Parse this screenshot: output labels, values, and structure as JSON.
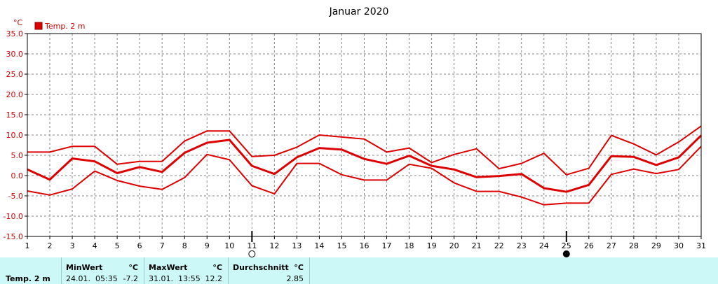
{
  "chart_data": {
    "type": "line",
    "title": "Januar 2020",
    "unit": "°C",
    "legend": {
      "label": "Temp. 2 m",
      "placement": "top-left",
      "color": "#dd0000"
    },
    "ylim": [
      -15,
      35
    ],
    "yticks": [
      "35.0",
      "30.0",
      "25.0",
      "20.0",
      "15.0",
      "10.0",
      "5.0",
      "0.0",
      "-5.0",
      "-10.0",
      "-15.0"
    ],
    "ytick_values": [
      35,
      30,
      25,
      20,
      15,
      10,
      5,
      0,
      -5,
      -10,
      -15
    ],
    "x": [
      1,
      2,
      3,
      4,
      5,
      6,
      7,
      8,
      9,
      10,
      11,
      12,
      13,
      14,
      15,
      16,
      17,
      18,
      19,
      20,
      21,
      22,
      23,
      24,
      25,
      26,
      27,
      28,
      29,
      30,
      31
    ],
    "xlim": [
      1,
      31
    ],
    "grid": true,
    "series": [
      {
        "role": "max",
        "values": [
          5.8,
          5.8,
          7.2,
          7.2,
          2.8,
          3.5,
          3.5,
          8.5,
          11.0,
          11.0,
          4.7,
          5.0,
          7.0,
          10.0,
          9.5,
          9.0,
          5.8,
          6.8,
          3.2,
          5.2,
          6.6,
          1.7,
          3.0,
          5.5,
          0.2,
          1.8,
          9.9,
          7.8,
          5.1,
          8.3,
          12.2
        ]
      },
      {
        "role": "average",
        "values": [
          1.5,
          -1.0,
          4.2,
          3.5,
          0.6,
          2.1,
          0.9,
          5.6,
          8.1,
          8.8,
          2.4,
          0.4,
          4.5,
          6.8,
          6.4,
          4.1,
          2.9,
          4.9,
          2.4,
          1.5,
          -0.4,
          -0.1,
          0.4,
          -3.1,
          -4.0,
          -2.3,
          4.8,
          4.6,
          2.6,
          4.5,
          9.9
        ]
      },
      {
        "role": "min",
        "values": [
          -3.8,
          -4.8,
          -3.3,
          1.1,
          -1.2,
          -2.6,
          -3.4,
          -0.5,
          5.2,
          3.9,
          -2.5,
          -4.5,
          3.0,
          3.0,
          0.2,
          -1.1,
          -1.1,
          2.8,
          1.8,
          -1.8,
          -3.9,
          -3.9,
          -5.3,
          -7.2,
          -6.8,
          -6.8,
          0.3,
          1.6,
          0.5,
          1.5,
          7.2
        ]
      }
    ],
    "markers": [
      {
        "x": 11,
        "symbol": "new-moon-open-circle"
      },
      {
        "x": 25,
        "symbol": "full-moon-filled-circle"
      }
    ]
  },
  "footer": {
    "label": "Temp. 2 m",
    "min": {
      "header": "MinWert",
      "unit": "°C",
      "date": "24.01.",
      "time": "05:35",
      "value": "-7.2"
    },
    "max": {
      "header": "MaxWert",
      "unit": "°C",
      "date": "31.01.",
      "time": "13:55",
      "value": "12.2"
    },
    "avg": {
      "header": "Durchschnitt",
      "unit": "°C",
      "value": "2.85"
    }
  },
  "colors": {
    "line": "#dd0000",
    "axis_text": "#cc0000",
    "grid": "#888888",
    "footer_bg": "#ccf8f8"
  }
}
